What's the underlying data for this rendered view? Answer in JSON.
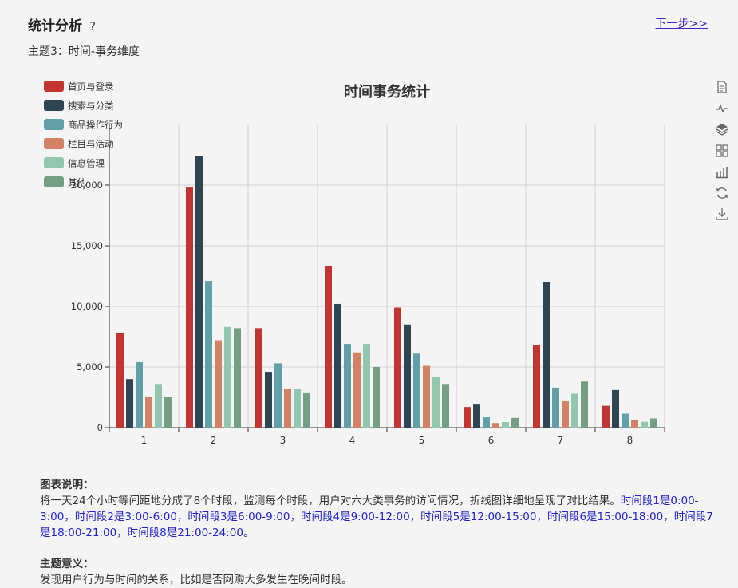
{
  "header": {
    "title": "统计分析",
    "help": "?",
    "next_link": "下一步>>",
    "subtitle": "主题3：时间-事务维度"
  },
  "chart_data": {
    "type": "bar",
    "title": "时间事务统计",
    "categories": [
      "1",
      "2",
      "3",
      "4",
      "5",
      "6",
      "7",
      "8"
    ],
    "ylim": [
      0,
      20000
    ],
    "yticks": [
      "0",
      "5,000",
      "10,000",
      "15,000",
      "20,000"
    ],
    "grid": true,
    "legend_position": "top-left",
    "series": [
      {
        "name": "首页与登录",
        "color": "#c23531",
        "values": [
          7800,
          19800,
          8200,
          13300,
          9900,
          1700,
          6800,
          1800
        ]
      },
      {
        "name": "搜索与分类",
        "color": "#2f4554",
        "values": [
          4000,
          22400,
          4600,
          10200,
          8500,
          1900,
          12000,
          3100
        ]
      },
      {
        "name": "商品操作行为",
        "color": "#61a0a8",
        "values": [
          5400,
          12100,
          5300,
          6900,
          6100,
          850,
          3300,
          1150
        ]
      },
      {
        "name": "栏目与活动",
        "color": "#d48265",
        "values": [
          2500,
          7200,
          3200,
          6200,
          5100,
          380,
          2200,
          650
        ]
      },
      {
        "name": "信息管理",
        "color": "#91c7ae",
        "values": [
          3600,
          8300,
          3200,
          6900,
          4200,
          460,
          2800,
          480
        ]
      },
      {
        "name": "其他",
        "color": "#749f83",
        "values": [
          2500,
          8200,
          2900,
          5000,
          3600,
          800,
          3800,
          760
        ]
      }
    ]
  },
  "toolbox": [
    "data-view-icon",
    "line-chart-icon",
    "stack-icon",
    "tiled-icon",
    "bar-chart-icon",
    "restore-icon",
    "download-icon"
  ],
  "description": {
    "heading": "图表说明：",
    "text": "将一天24个小时等间距地分成了8个时段，监测每个时段，用户对六大类事务的访问情况，折线图详细地呈现了对比结果。",
    "periods": "时间段1是0:00-3:00，时间段2是3:00-6:00，时间段3是6:00-9:00，时间段4是9:00-12:00，时间段5是12:00-15:00，时间段6是15:00-18:00，时间段7是18:00-21:00，时间段8是21:00-24:00。"
  },
  "meaning": {
    "heading": "主题意义：",
    "text": "发现用户行为与时间的关系，比如是否网购大多发生在晚间时段。"
  }
}
